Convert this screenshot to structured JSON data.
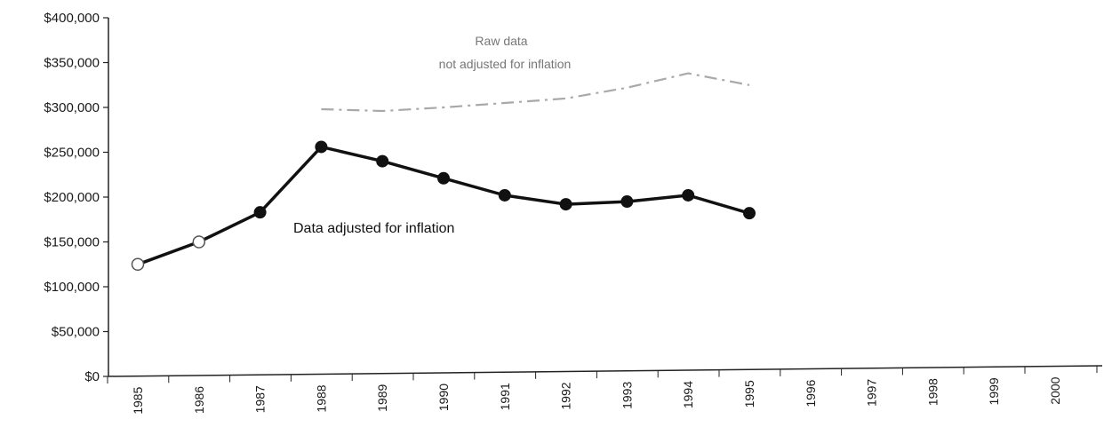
{
  "chart_data": {
    "type": "line",
    "title": "",
    "xlabel": "",
    "ylabel": "",
    "ylim": [
      0,
      400000
    ],
    "y_tick_values": [
      0,
      50000,
      100000,
      150000,
      200000,
      250000,
      300000,
      350000,
      400000
    ],
    "y_tick_labels": [
      "$0",
      "$50,000",
      "$100,000",
      "$150,000",
      "$200,000",
      "$250,000",
      "$300,000",
      "$350,000",
      "$400,000"
    ],
    "categories": [
      "1985",
      "1986",
      "1987",
      "1988",
      "1989",
      "1990",
      "1991",
      "1992",
      "1993",
      "1994",
      "1995",
      "1996",
      "1997",
      "1998",
      "1999",
      "2000"
    ],
    "grid": false,
    "legend": "none",
    "series": [
      {
        "values": [
          125000,
          150000,
          183000,
          256000,
          240000,
          221000,
          202000,
          192000,
          195000,
          202000,
          182000,
          null,
          null,
          null,
          null,
          null
        ],
        "color": "#111111",
        "style": "solid-markers"
      },
      {
        "values": [
          null,
          null,
          null,
          298000,
          296000,
          300000,
          305000,
          310000,
          322000,
          338000,
          325000,
          null,
          null,
          null,
          null,
          null
        ],
        "color": "#8c8c8c",
        "style": "faint-dashed"
      }
    ],
    "annotations": [
      {
        "text_line1": "Raw data",
        "text_line2": "not adjusted for inflation",
        "series": 1
      },
      {
        "text": "Data adjusted for inflation",
        "series": 0
      }
    ]
  }
}
